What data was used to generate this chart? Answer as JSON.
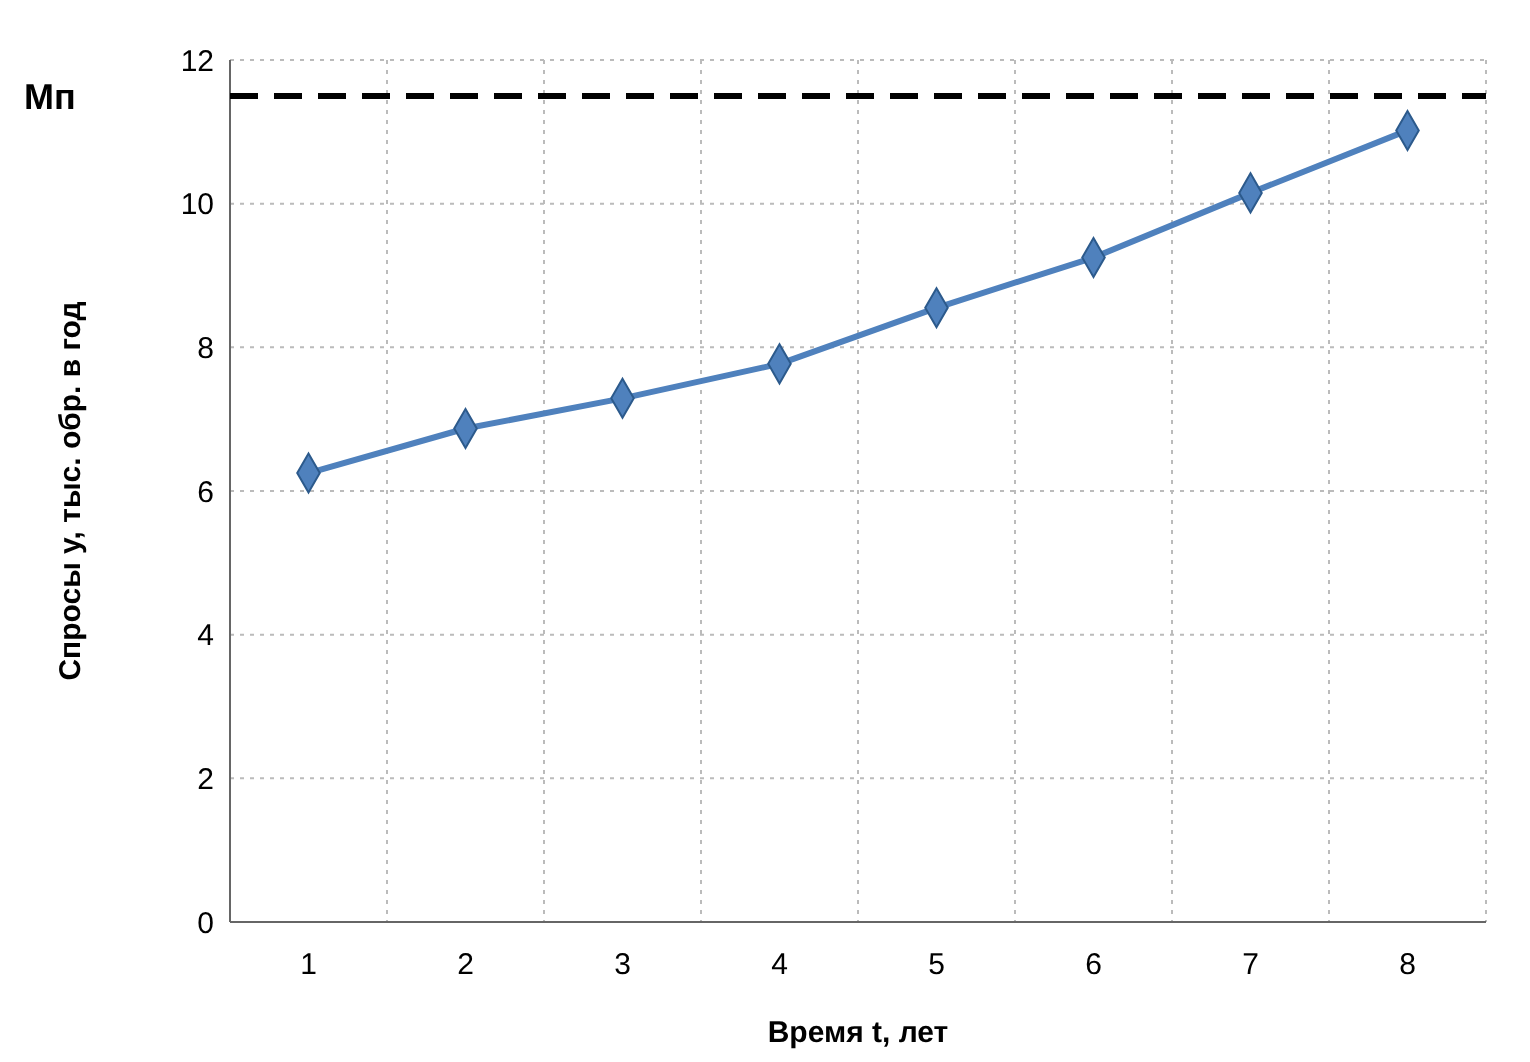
{
  "chart_data": {
    "type": "line",
    "xlabel": "Время t, лет",
    "ylabel": "Спросы y, тыс. обр. в год",
    "categories": [
      "1",
      "2",
      "3",
      "4",
      "5",
      "6",
      "7",
      "8"
    ],
    "series": [
      {
        "color": "#4f81bd",
        "values": [
          6.25,
          6.87,
          7.29,
          7.77,
          8.55,
          9.25,
          10.15,
          11.02
        ]
      }
    ],
    "ylim": [
      0,
      12
    ],
    "yticks": [
      0,
      2,
      4,
      6,
      8,
      10,
      12
    ],
    "grid": true,
    "marker": "diamond",
    "line_style": "solid",
    "ref_lines": [
      {
        "axis": "y",
        "value": 11.5,
        "label": "Mп",
        "color": "#000000",
        "line_style": "dashed"
      }
    ]
  }
}
